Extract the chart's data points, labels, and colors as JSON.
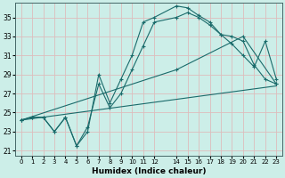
{
  "xlabel": "Humidex (Indice chaleur)",
  "background_color": "#cceee8",
  "grid_color": "#ddbcbc",
  "line_color": "#1a6b6b",
  "xlim": [
    -0.5,
    23.5
  ],
  "ylim": [
    20.5,
    36.5
  ],
  "yticks": [
    21,
    23,
    25,
    27,
    29,
    31,
    33,
    35
  ],
  "xticks": [
    0,
    1,
    2,
    3,
    4,
    5,
    6,
    7,
    8,
    9,
    10,
    11,
    12,
    14,
    15,
    16,
    17,
    18,
    19,
    20,
    21,
    22,
    23
  ],
  "xtick_labels": [
    "0",
    "1",
    "2",
    "3",
    "4",
    "5",
    "6",
    "7",
    "8",
    "9",
    "10",
    "11",
    "12",
    "14",
    "15",
    "16",
    "17",
    "18",
    "19",
    "20",
    "21",
    "22",
    "23"
  ],
  "line1_x": [
    0,
    1,
    2,
    3,
    4,
    5,
    6,
    7,
    8,
    9,
    10,
    11,
    12,
    14,
    15,
    16,
    17,
    18,
    19,
    20,
    21,
    22,
    23
  ],
  "line1_y": [
    24.2,
    24.5,
    24.5,
    23.0,
    24.5,
    21.5,
    23.0,
    29.0,
    26.0,
    28.5,
    31.0,
    34.5,
    35.0,
    36.2,
    36.0,
    35.2,
    34.5,
    33.2,
    33.0,
    32.5,
    30.0,
    28.5,
    28.0
  ],
  "line2_x": [
    0,
    1,
    2,
    3,
    4,
    5,
    6,
    7,
    8,
    9,
    10,
    11,
    12,
    14,
    15,
    16,
    17,
    18,
    19,
    20,
    21,
    22,
    23
  ],
  "line2_y": [
    24.2,
    24.5,
    24.5,
    23.0,
    24.5,
    21.5,
    23.5,
    28.0,
    25.5,
    27.0,
    29.5,
    32.0,
    34.5,
    35.0,
    35.5,
    35.0,
    34.2,
    33.2,
    32.2,
    31.0,
    29.8,
    32.5,
    28.5
  ],
  "line3_x": [
    0,
    14,
    20,
    23
  ],
  "line3_y": [
    24.2,
    29.5,
    33.0,
    28.0
  ],
  "line4_x": [
    0,
    23
  ],
  "line4_y": [
    24.2,
    27.8
  ]
}
